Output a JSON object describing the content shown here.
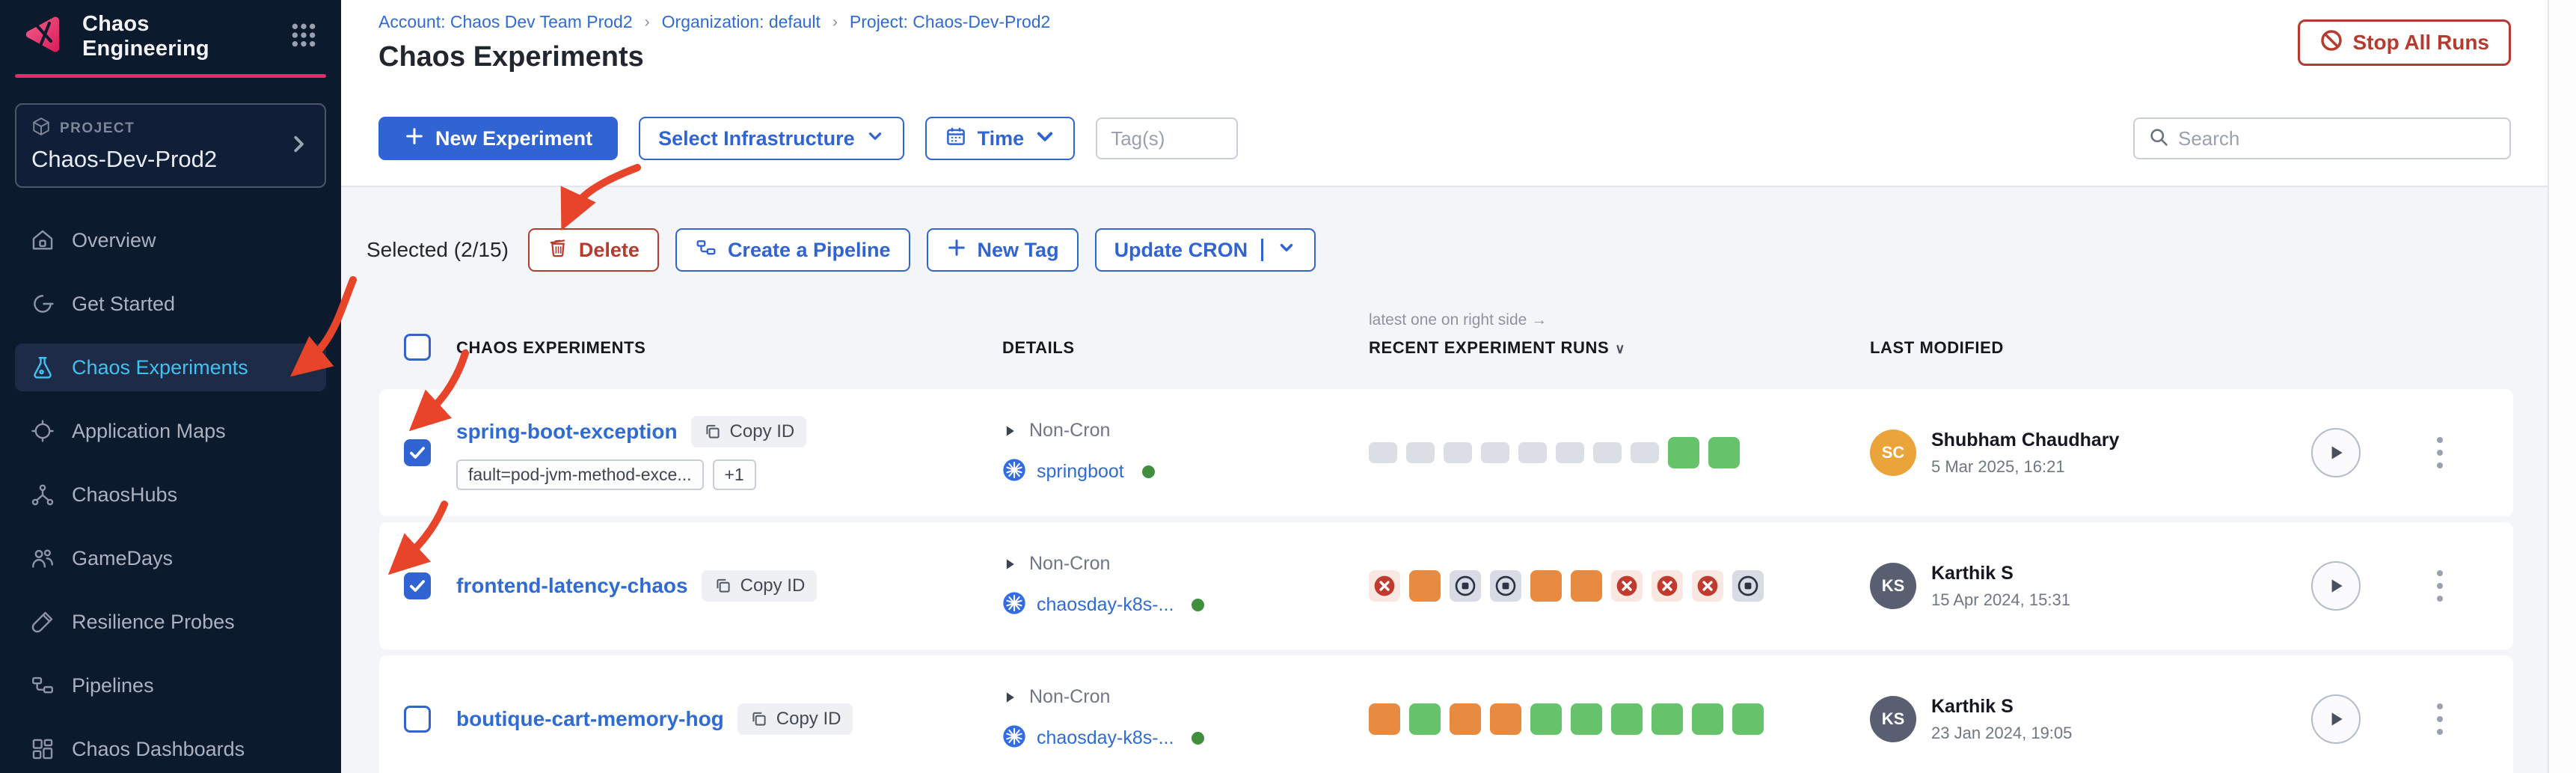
{
  "app": {
    "accent_pink": "#e62a6b",
    "primary_blue": "#3064d2",
    "danger_red": "#b73a2e"
  },
  "sidebar": {
    "app_title": "Chaos Engineering",
    "project_label": "PROJECT",
    "project_name": "Chaos-Dev-Prod2",
    "items": [
      {
        "label": "Overview",
        "icon": "home-icon",
        "active": false
      },
      {
        "label": "Get Started",
        "icon": "get-started-icon",
        "active": false
      },
      {
        "label": "Chaos Experiments",
        "icon": "flask-icon",
        "active": true
      },
      {
        "label": "Application Maps",
        "icon": "target-icon",
        "active": false
      },
      {
        "label": "ChaosHubs",
        "icon": "hub-icon",
        "active": false
      },
      {
        "label": "GameDays",
        "icon": "people-icon",
        "active": false
      },
      {
        "label": "Resilience Probes",
        "icon": "probe-icon",
        "active": false
      },
      {
        "label": "Pipelines",
        "icon": "pipeline-icon",
        "active": false
      },
      {
        "label": "Chaos Dashboards",
        "icon": "dashboard-icon",
        "active": false
      }
    ]
  },
  "header": {
    "breadcrumb": [
      "Account: Chaos Dev Team Prod2",
      "Organization: default",
      "Project: Chaos-Dev-Prod2"
    ],
    "separator": "›",
    "title": "Chaos Experiments",
    "stop_all_runs": "Stop All Runs"
  },
  "toolbar": {
    "new_experiment": "New Experiment",
    "select_infrastructure": "Select Infrastructure",
    "time": "Time",
    "tags_placeholder": "Tag(s)",
    "search_placeholder": "Search"
  },
  "selection_bar": {
    "selected_text": "Selected (2/15)",
    "delete": "Delete",
    "create_pipeline": "Create a Pipeline",
    "new_tag": "New Tag",
    "update_cron": "Update CRON"
  },
  "table": {
    "note": "latest one on right side →",
    "columns": {
      "experiments": "CHAOS EXPERIMENTS",
      "details": "DETAILS",
      "recent": "RECENT EXPERIMENT RUNS",
      "modified": "LAST MODIFIED"
    },
    "run_colors": {
      "pending": "#dcdee6",
      "success": "#66c36b",
      "degraded": "#e88b41",
      "failed": "#c23a2d",
      "stopped": "#2c3344"
    },
    "rows": [
      {
        "name": "spring-boot-exception",
        "copy_id": "Copy ID",
        "tags": [
          "fault=pod-jvm-method-exce...",
          "+1"
        ],
        "cron": "Non-Cron",
        "infra": "springboot",
        "checked": true,
        "runs": [
          "pending",
          "pending",
          "pending",
          "pending",
          "pending",
          "pending",
          "pending",
          "pending",
          "success",
          "success"
        ],
        "modified_by": "Shubham Chaudhary",
        "initials": "SC",
        "avatar_color": "#eaa43a",
        "modified_date": "5 Mar 2025, 16:21"
      },
      {
        "name": "frontend-latency-chaos",
        "copy_id": "Copy ID",
        "tags": [],
        "cron": "Non-Cron",
        "infra": "chaosday-k8s-...",
        "checked": true,
        "runs": [
          "failed",
          "degraded",
          "stopped",
          "stopped",
          "degraded",
          "degraded",
          "failed",
          "failed",
          "failed",
          "stopped"
        ],
        "modified_by": "Karthik S",
        "initials": "KS",
        "avatar_color": "#595e70",
        "modified_date": "15 Apr 2024, 15:31"
      },
      {
        "name": "boutique-cart-memory-hog",
        "copy_id": "Copy ID",
        "tags": [],
        "cron": "Non-Cron",
        "infra": "chaosday-k8s-...",
        "checked": false,
        "runs": [
          "degraded",
          "success",
          "degraded",
          "degraded",
          "success",
          "success",
          "success",
          "success",
          "success",
          "success"
        ],
        "modified_by": "Karthik S",
        "initials": "KS",
        "avatar_color": "#595e70",
        "modified_date": "23 Jan 2024, 19:05"
      }
    ]
  }
}
